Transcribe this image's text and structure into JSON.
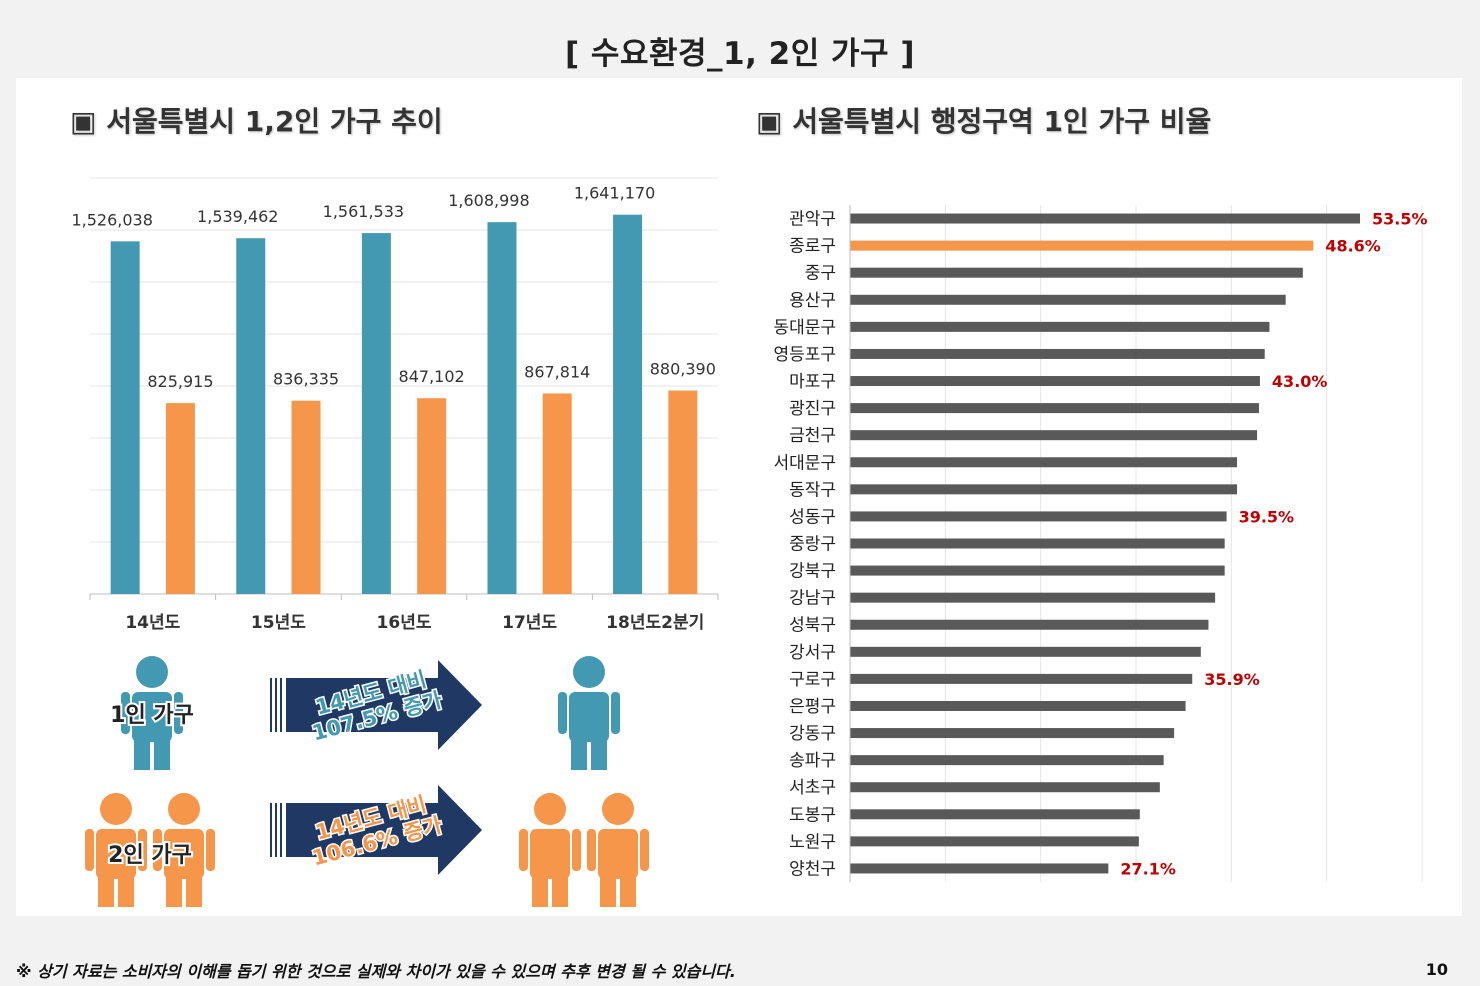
{
  "page": {
    "title": "[ 수요환경_1, 2인 가구 ]",
    "left_section_title": "▣ 서울특별시 1,2인 가구 추이",
    "right_section_title": "▣ 서울특별시 행정구역 1인 가구 비율",
    "footer_note": "※ 상기 자료는 소비자의 이해를 돕기 위한 것으로 실제와 차이가 있을 수 있으며 추후 변경 될 수 있습니다.",
    "page_number": "10"
  },
  "infographic": {
    "one_person_label": "1인 가구",
    "two_person_label": "2인 가구",
    "one_person_arrow": [
      "14년도 대비",
      "107.5% 증가"
    ],
    "two_person_arrow": [
      "14년도 대비",
      "106.6% 증가"
    ]
  },
  "colors": {
    "one_person": "#4499b2",
    "two_person": "#f5964a",
    "hbar": "#595959",
    "hbar_highlight": "#f5964a",
    "value_label": "#c00000",
    "arrow": "#1f3864"
  },
  "chart_data": [
    {
      "type": "bar",
      "categories": [
        "14년도",
        "15년도",
        "16년도",
        "17년도",
        "18년도2분기"
      ],
      "series": [
        {
          "values": [
            1526038,
            1539462,
            1561533,
            1608998,
            1641170
          ]
        },
        {
          "values": [
            825915,
            836335,
            847102,
            867814,
            880390
          ]
        }
      ],
      "value_labels": [
        [
          "1,526,038",
          "1,539,462",
          "1,561,533",
          "1,608,998",
          "1,641,170"
        ],
        [
          "825,915",
          "836,335",
          "847,102",
          "867,814",
          "880,390"
        ]
      ],
      "ylim": [
        0,
        1800000
      ],
      "grid": true
    },
    {
      "type": "bar",
      "orientation": "horizontal",
      "categories": [
        "관악구",
        "종로구",
        "중구",
        "용산구",
        "동대문구",
        "영등포구",
        "마포구",
        "광진구",
        "금천구",
        "서대문구",
        "동작구",
        "성동구",
        "중랑구",
        "강북구",
        "강남구",
        "성북구",
        "강서구",
        "구로구",
        "은평구",
        "강동구",
        "송파구",
        "서초구",
        "도봉구",
        "노원구",
        "양천구"
      ],
      "values": [
        53.5,
        48.6,
        47.5,
        45.7,
        44.0,
        43.5,
        43.0,
        42.9,
        42.7,
        40.6,
        40.6,
        39.5,
        39.3,
        39.3,
        38.3,
        37.6,
        36.8,
        35.9,
        35.2,
        34.0,
        32.9,
        32.5,
        30.4,
        30.3,
        27.1
      ],
      "labels": [
        "53.5%",
        "48.6%",
        "",
        "",
        "",
        "",
        "43.0%",
        "",
        "",
        "",
        "",
        "39.5%",
        "",
        "",
        "",
        "",
        "",
        "35.9%",
        "",
        "",
        "",
        "",
        "",
        "",
        "27.1%"
      ],
      "highlight": "종로구",
      "xlim": [
        0,
        60
      ],
      "grid": true
    }
  ]
}
